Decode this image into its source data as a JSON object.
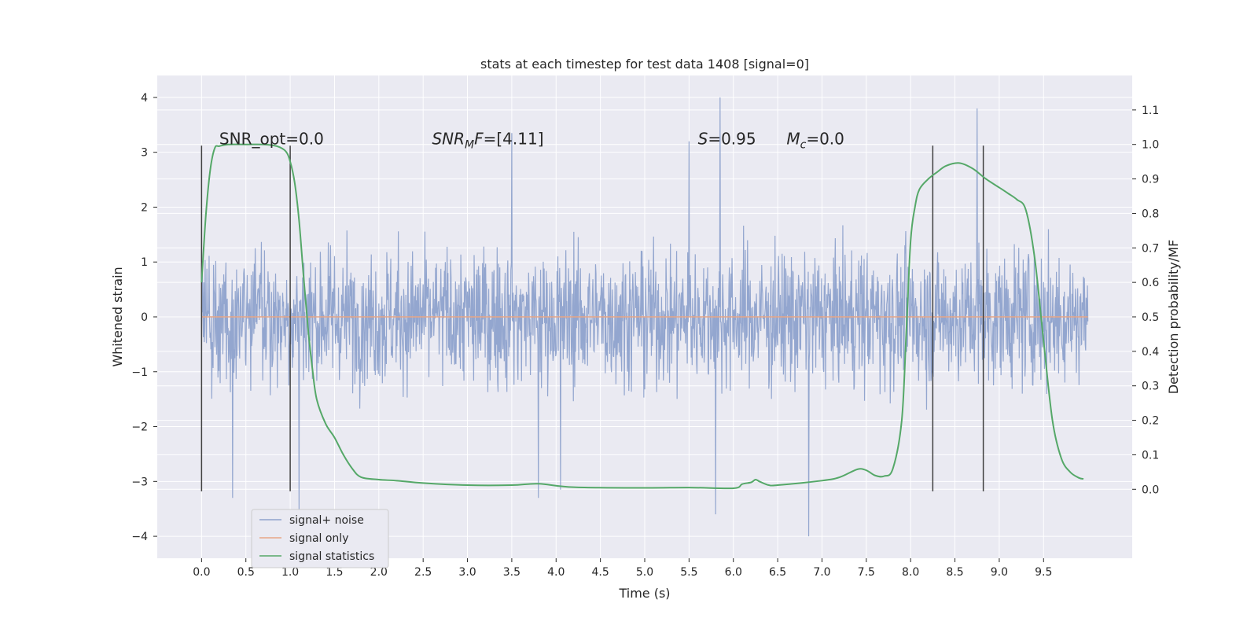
{
  "colors": {
    "plot_background": "#eaeaf2",
    "grid": "#ffffff",
    "noise_series": "#8ea2cc",
    "signal_only": "#e8a686",
    "statistics": "#55a868",
    "vline": "#404040",
    "text": "#262626"
  },
  "chart_data": {
    "type": "line",
    "title": "stats at each timestep for test data 1408 [signal=0]",
    "xlabel": "Time (s)",
    "ylabel_left": "Whitened strain",
    "ylabel_right": "Detection probability/MF",
    "xlim": [
      -0.5,
      10.5
    ],
    "ylim_left": [
      -4.4,
      4.4
    ],
    "ylim_right": [
      -0.2,
      1.2
    ],
    "x_ticks": [
      0.0,
      0.5,
      1.0,
      1.5,
      2.0,
      2.5,
      3.0,
      3.5,
      4.0,
      4.5,
      5.0,
      5.5,
      6.0,
      6.5,
      7.0,
      7.5,
      8.0,
      8.5,
      9.0,
      9.5
    ],
    "x_tick_labels": [
      "0.0",
      "0.5",
      "1.0",
      "1.5",
      "2.0",
      "2.5",
      "3.0",
      "3.5",
      "4.0",
      "4.5",
      "5.0",
      "5.5",
      "6.0",
      "6.5",
      "7.0",
      "7.5",
      "8.0",
      "8.5",
      "9.0",
      "9.5"
    ],
    "y_left_ticks": [
      -4,
      -3,
      -2,
      -1,
      0,
      1,
      2,
      3,
      4
    ],
    "y_left_tick_labels": [
      "−4",
      "−3",
      "−2",
      "−1",
      "0",
      "1",
      "2",
      "3",
      "4"
    ],
    "y_right_ticks": [
      0.0,
      0.1,
      0.2,
      0.3,
      0.4,
      0.5,
      0.6,
      0.7,
      0.8,
      0.9,
      1.0,
      1.1
    ],
    "y_right_tick_labels": [
      "0.0",
      "0.1",
      "0.2",
      "0.3",
      "0.4",
      "0.5",
      "0.6",
      "0.7",
      "0.8",
      "0.9",
      "1.0",
      "1.1"
    ],
    "grid": true,
    "legend_position": "lower-left",
    "series": [
      {
        "name": "signal+ noise",
        "axis": "left",
        "description_kind": "noise",
        "x_range": [
          0.0,
          10.0
        ],
        "core_amplitude": 1.25,
        "typical_peak": 2.4,
        "spikes": [
          {
            "x": 5.85,
            "y": 4.0
          },
          {
            "x": 8.75,
            "y": 3.8
          },
          {
            "x": 3.5,
            "y": 3.35
          },
          {
            "x": 5.5,
            "y": 3.2
          },
          {
            "x": 1.1,
            "y": -3.55
          },
          {
            "x": 0.35,
            "y": -3.3
          },
          {
            "x": 5.8,
            "y": -3.6
          },
          {
            "x": 6.85,
            "y": -4.0
          },
          {
            "x": 3.8,
            "y": -3.3
          },
          {
            "x": 4.05,
            "y": -3.15
          }
        ]
      },
      {
        "name": "signal only",
        "axis": "left",
        "x": [
          0.0,
          10.0
        ],
        "y": [
          0.0,
          0.0
        ]
      },
      {
        "name": "signal statistics",
        "axis": "right",
        "x": [
          0.0,
          0.05,
          0.1,
          0.15,
          0.2,
          0.3,
          0.5,
          0.7,
          0.85,
          0.95,
          1.0,
          1.05,
          1.1,
          1.15,
          1.2,
          1.25,
          1.3,
          1.4,
          1.5,
          1.6,
          1.7,
          1.8,
          2.0,
          2.2,
          2.5,
          3.0,
          3.5,
          3.8,
          4.2,
          5.0,
          5.5,
          6.0,
          6.1,
          6.2,
          6.25,
          6.3,
          6.4,
          6.5,
          7.0,
          7.2,
          7.4,
          7.5,
          7.6,
          7.7,
          7.8,
          7.9,
          7.95,
          8.0,
          8.05,
          8.1,
          8.2,
          8.3,
          8.4,
          8.55,
          8.7,
          8.85,
          9.0,
          9.1,
          9.2,
          9.3,
          9.4,
          9.5,
          9.6,
          9.7,
          9.8,
          9.9,
          9.95
        ],
        "y": [
          0.6,
          0.8,
          0.93,
          0.99,
          0.995,
          1.0,
          1.0,
          1.0,
          0.995,
          0.98,
          0.95,
          0.89,
          0.78,
          0.62,
          0.47,
          0.35,
          0.26,
          0.19,
          0.15,
          0.1,
          0.06,
          0.035,
          0.028,
          0.025,
          0.018,
          0.012,
          0.012,
          0.016,
          0.006,
          0.004,
          0.005,
          0.003,
          0.015,
          0.02,
          0.028,
          0.022,
          0.012,
          0.012,
          0.025,
          0.035,
          0.058,
          0.055,
          0.04,
          0.038,
          0.06,
          0.2,
          0.45,
          0.72,
          0.82,
          0.87,
          0.9,
          0.92,
          0.938,
          0.946,
          0.93,
          0.9,
          0.875,
          0.858,
          0.84,
          0.81,
          0.67,
          0.43,
          0.2,
          0.09,
          0.05,
          0.033,
          0.03
        ]
      }
    ],
    "vertical_lines": [
      0.0,
      1.0,
      8.25,
      8.82
    ],
    "vertical_line_range": [
      -3.18,
      3.12
    ],
    "annotations": [
      {
        "id": "snr-opt",
        "text": "SNR_opt=0.0",
        "x": 0.2,
        "y": 3.12
      },
      {
        "id": "snr-mf",
        "base": "SNR",
        "sub": "M",
        "tail": "F=[4.11]",
        "x": 2.6,
        "y": 3.12
      },
      {
        "id": "s",
        "base": "S",
        "sub": "",
        "tail": "=0.95",
        "x": 5.6,
        "y": 3.12
      },
      {
        "id": "mc",
        "base": "M",
        "sub": "c",
        "tail": "=0.0",
        "x": 6.6,
        "y": 3.12
      }
    ]
  }
}
